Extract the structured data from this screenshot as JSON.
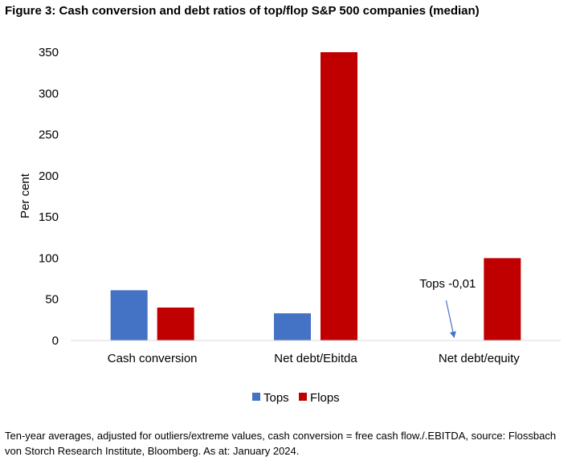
{
  "figure_title": "Figure 3: Cash conversion and debt ratios of top/flop S&P 500 companies (median)",
  "footnote": "Ten-year averages, adjusted for outliers/extreme values, cash conversion = free cash flow./.EBITDA, source: Flossbach von Storch Research Institute, Bloomberg. As at: January 2024.",
  "colors": {
    "tops": "#4472c4",
    "flops": "#c00000",
    "arrow": "#4472c4",
    "axis": "#d9d9d9"
  },
  "chart_data": {
    "type": "bar",
    "title": "Figure 3: Cash conversion and debt ratios of top/flop S&P 500 companies (median)",
    "xlabel": "",
    "ylabel": "Per cent",
    "ylim": [
      0,
      350
    ],
    "yticks": [
      0,
      50,
      100,
      150,
      200,
      250,
      300,
      350
    ],
    "grid": false,
    "legend_position": "bottom",
    "categories": [
      "Cash conversion",
      "Net debt/Ebitda",
      "Net debt/equity"
    ],
    "series": [
      {
        "name": "Tops",
        "values": [
          61,
          33,
          -0.01
        ]
      },
      {
        "name": "Flops",
        "values": [
          40,
          350,
          100
        ]
      }
    ],
    "annotations": [
      {
        "text": "Tops -0,01",
        "category": "Net debt/equity",
        "series": "Tops"
      }
    ]
  }
}
